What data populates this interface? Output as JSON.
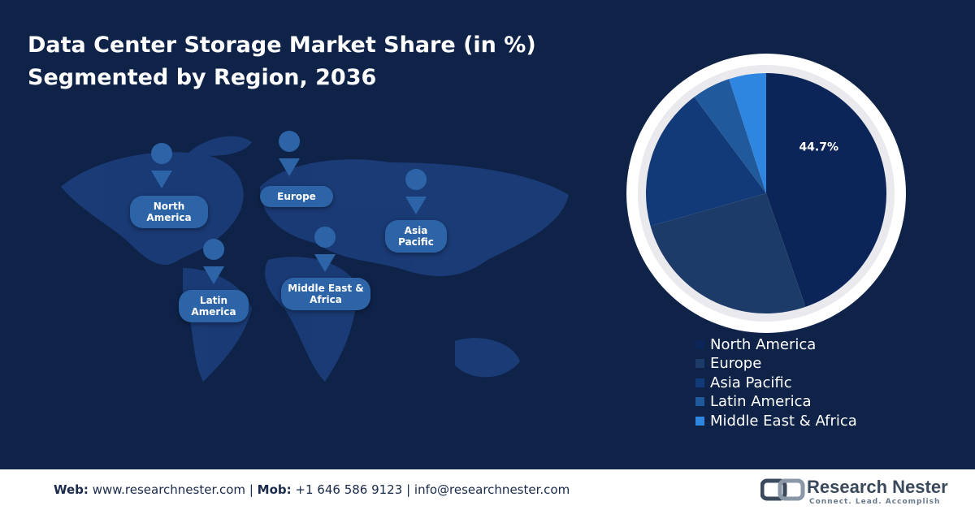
{
  "chart_data": {
    "type": "pie",
    "title": "Data Center Storage Market Share (in %)",
    "subtitle": "Segmented by Region, 2036",
    "categories": [
      "North America",
      "Europe",
      "Asia Pacific",
      "Latin America",
      "Middle East & Africa"
    ],
    "values": [
      44.7,
      25.9,
      19.2,
      5.2,
      5.0
    ],
    "value_labels": [
      "44.7%",
      null,
      null,
      null,
      null
    ],
    "colors": [
      "#0c2559",
      "#1d3b68",
      "#123a79",
      "#215a9c",
      "#2f86e0"
    ],
    "legend": "bottom-right"
  },
  "map": {
    "labels": [
      "North America",
      "Europe",
      "Asia Pacific",
      "Latin America",
      "Middle East & Africa"
    ]
  },
  "footer": {
    "web_label": "Web:",
    "web": "www.researchnester.com",
    "separator": "|",
    "mob_label": "Mob:",
    "mob": "+1 646 586 9123",
    "email": "info@researchnester.com"
  },
  "logo": {
    "name": "Research Nester",
    "tagline": "Connect. Lead. Accomplish"
  }
}
